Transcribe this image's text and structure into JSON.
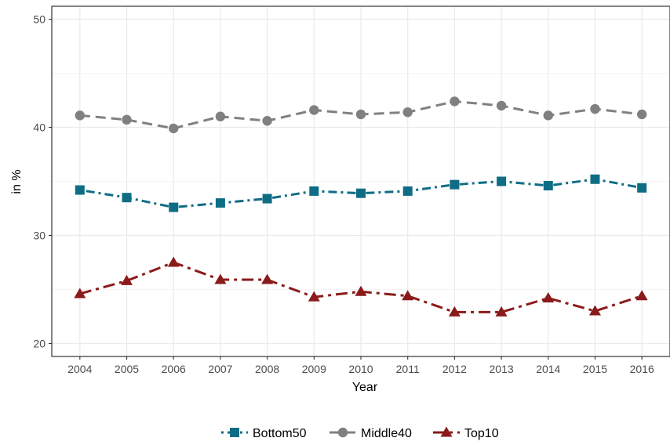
{
  "chart_data": {
    "type": "line",
    "xlabel": "Year",
    "ylabel": "in %",
    "x": [
      2004,
      2005,
      2006,
      2007,
      2008,
      2009,
      2010,
      2011,
      2012,
      2013,
      2014,
      2015,
      2016
    ],
    "xlim": [
      2003.4,
      2016.6
    ],
    "ylim": [
      18.8,
      51.2
    ],
    "yticks": [
      20,
      30,
      40,
      50
    ],
    "grid": true,
    "legend_position": "bottom",
    "series": [
      {
        "name": "Bottom50",
        "color": "#0e6d85",
        "marker": "square",
        "line_style": "dot-dash",
        "values": [
          34.2,
          33.5,
          32.6,
          33.0,
          33.4,
          34.1,
          33.9,
          34.1,
          34.7,
          35.0,
          34.6,
          35.2,
          34.4
        ]
      },
      {
        "name": "Middle40",
        "color": "#808080",
        "marker": "circle",
        "line_style": "dashed",
        "values": [
          41.1,
          40.7,
          39.9,
          41.0,
          40.6,
          41.6,
          41.2,
          41.4,
          42.4,
          42.0,
          41.1,
          41.7,
          41.2
        ]
      },
      {
        "name": "Top10",
        "color": "#8b1a1a",
        "marker": "triangle",
        "line_style": "long-dash-dot",
        "values": [
          24.6,
          25.8,
          27.5,
          25.9,
          25.9,
          24.3,
          24.8,
          24.4,
          22.9,
          22.9,
          24.2,
          23.0,
          24.4
        ]
      }
    ]
  }
}
